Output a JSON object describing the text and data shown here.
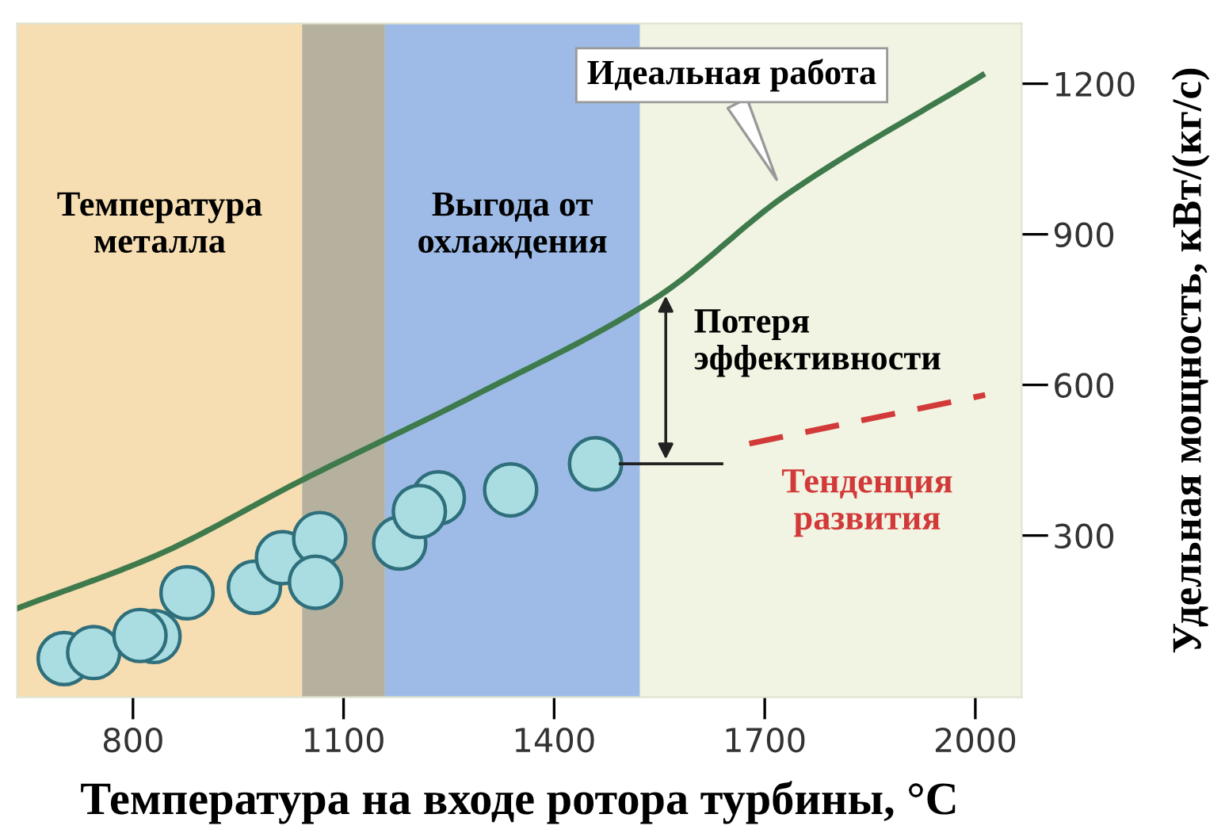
{
  "chart_data": {
    "type": "scatter",
    "xlabel": "Температура на входе ротора турбины, °C",
    "ylabel": "Удельная мощность, кВт/(кг/с)",
    "xlim": [
      635,
      2066
    ],
    "xticks": [
      800,
      1100,
      1400,
      1700,
      2000
    ],
    "ylim": [
      -22,
      1320
    ],
    "yticks": [
      300,
      600,
      900,
      1200
    ],
    "grid": false,
    "legend": false,
    "bands": [
      {
        "axis": "x",
        "from": 635,
        "to": 1041,
        "label": "Температура\nметалла",
        "color": "#f6deb2"
      },
      {
        "axis": "x",
        "from": 1041,
        "to": 1159,
        "color": "#b5b19e"
      },
      {
        "axis": "x",
        "from": 1159,
        "to": 1522,
        "label": "Выгода от\nохлаждения",
        "color": "#9dbbe6"
      }
    ],
    "annotations": [
      "Потеря\nэффективности"
    ],
    "series": [
      {
        "name": "Идеальная работа",
        "type": "line",
        "color": "#3f7a4c",
        "line_style": "solid",
        "x": [
          635,
          836,
          1043,
          1288,
          1547,
          1728,
          2010
        ],
        "values": [
          155,
          262,
          412,
          580,
          775,
          976,
          1217
        ]
      },
      {
        "name": "Тенденция\nразвития",
        "type": "line",
        "color": "#d23a3a",
        "line_style": "dashed",
        "x": [
          1678,
          2014
        ],
        "values": [
          483,
          580
        ]
      },
      {
        "color": "#a9dde2",
        "marker": "circle",
        "x": [
          702,
          744,
          830,
          810,
          877,
          973,
          1013,
          1066,
          1060,
          1180,
          1235,
          1208,
          1338,
          1459
        ],
        "values": [
          55,
          67,
          99,
          101,
          186,
          197,
          256,
          294,
          207,
          285,
          375,
          348,
          391,
          443
        ]
      }
    ]
  }
}
